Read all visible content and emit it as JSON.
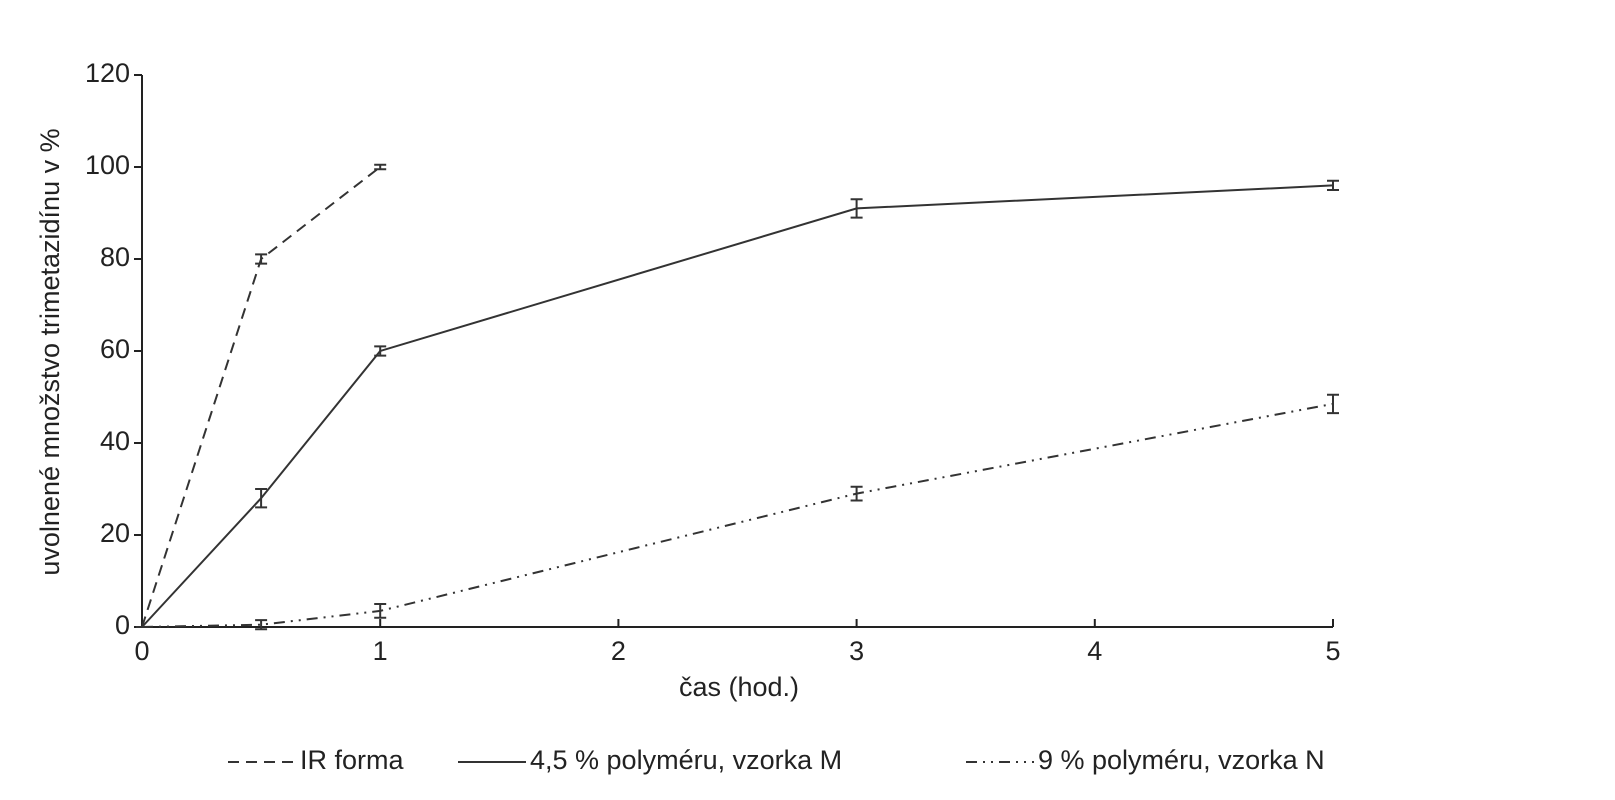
{
  "chart_data": {
    "type": "line",
    "xlabel": "čas (hod.)",
    "ylabel": "uvolnené množstvo trimetazidínu v %",
    "xlim": [
      0,
      5
    ],
    "xticks": [
      0,
      1,
      2,
      3,
      4,
      5
    ],
    "ylim": [
      0,
      120
    ],
    "yticks": [
      0,
      20,
      40,
      60,
      80,
      100,
      120
    ],
    "grid": false,
    "legend": "bottom",
    "series": [
      {
        "name": "IR forma",
        "color": "#333333",
        "linestyle": "dashed",
        "x": [
          0,
          0.5,
          1
        ],
        "values": [
          0,
          80,
          100
        ],
        "errors": [
          0,
          1,
          0.5
        ]
      },
      {
        "name": "4,5 % polyméru, vzorka M",
        "color": "#333333",
        "linestyle": "solid",
        "x": [
          0,
          0.5,
          1,
          3,
          5
        ],
        "values": [
          0,
          28,
          60,
          91,
          96
        ],
        "errors": [
          0,
          2,
          1,
          2,
          1
        ]
      },
      {
        "name": "9 % polyméru, vzorka N",
        "color": "#333333",
        "linestyle": "dashdotdot",
        "x": [
          0,
          0.5,
          1,
          3,
          5
        ],
        "values": [
          0,
          0.5,
          3.5,
          29,
          48.5
        ],
        "errors": [
          0,
          1,
          1.5,
          1.5,
          2
        ]
      }
    ]
  }
}
